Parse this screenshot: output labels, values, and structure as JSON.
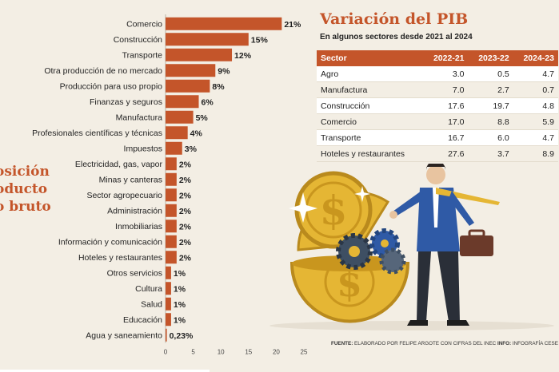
{
  "chart_data": {
    "type": "bar",
    "orientation": "horizontal",
    "categories": [
      "Comercio",
      "Construcción",
      "Transporte",
      "Otra producción de no mercado",
      "Producción para uso propio",
      "Finanzas y seguros",
      "Manufactura",
      "Profesionales científicas y técnicas",
      "Impuestos",
      "Electricidad, gas, vapor",
      "Minas y canteras",
      "Sector agropecuario",
      "Administración",
      "Inmobiliarias",
      "Información y comunicación",
      "Hoteles y restaurantes",
      "Otros servicios",
      "Cultura",
      "Salud",
      "Educación",
      "Agua y saneamiento"
    ],
    "values": [
      21,
      15,
      12,
      9,
      8,
      6,
      5,
      4,
      3,
      2,
      2,
      2,
      2,
      2,
      2,
      2,
      1,
      1,
      1,
      1,
      0.23
    ],
    "value_labels": [
      "21%",
      "15%",
      "12%",
      "9%",
      "8%",
      "6%",
      "5%",
      "4%",
      "3%",
      "2%",
      "2%",
      "2%",
      "2%",
      "2%",
      "2%",
      "2%",
      "1%",
      "1%",
      "1%",
      "1%",
      "0,23%"
    ],
    "xlim": [
      0,
      25
    ],
    "xticks": [
      "0",
      "5",
      "10",
      "15",
      "20",
      "25"
    ],
    "bar_color": "#c4552a",
    "side_title_lines": [
      "osición",
      "oducto",
      "o bruto"
    ]
  },
  "pib_table": {
    "title": "Variación del PIB",
    "subtitle": "En algunos sectores desde 2021 al 2024",
    "headers": [
      "Sector",
      "2022-21",
      "2023-22",
      "2024-23"
    ],
    "rows": [
      [
        "Agro",
        "3.0",
        "0.5",
        "4.7"
      ],
      [
        "Manufactura",
        "7.0",
        "2.7",
        "0.7"
      ],
      [
        "Construcción",
        "17.6",
        "19.7",
        "4.8"
      ],
      [
        "Comercio",
        "17.0",
        "8.8",
        "5.9"
      ],
      [
        "Transporte",
        "16.7",
        "6.0",
        "4.7"
      ],
      [
        "Hoteles y restaurantes",
        "27.6",
        "3.7",
        "8.9"
      ]
    ]
  },
  "footer": {
    "label1": "FUENTE:",
    "text1": " ELABORADO POR FELIPE ARGOTE CON CIFRAS DEL INEC ",
    "label2": "INFO:",
    "text2": " INFOGRAFÍA CESE"
  },
  "illustration": {
    "icons": [
      "gold-coin-icon",
      "gear-icon",
      "businessman-icon",
      "briefcase-icon",
      "sparkle-icon"
    ],
    "coin_color": "#e5b634",
    "suit_color": "#2f5aa6"
  }
}
